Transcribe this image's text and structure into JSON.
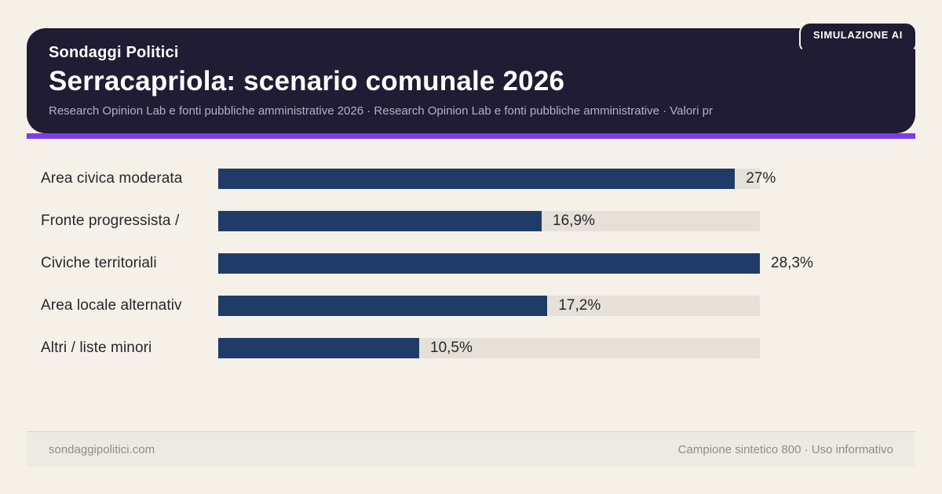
{
  "badge": {
    "label": "SIMULAZIONE AI"
  },
  "header": {
    "kicker": "Sondaggi Politici",
    "title": "Serracapriola: scenario comunale 2026",
    "subtitle": "Research Opinion Lab e fonti pubbliche amministrative 2026 · Research Opinion Lab e fonti pubbliche amministrative · Valori pr"
  },
  "chart_data": {
    "type": "bar",
    "orientation": "horizontal",
    "title": "Serracapriola: scenario comunale 2026",
    "categories": [
      "Area civica moderata",
      "Fronte progressista /",
      "Civiche territoriali",
      "Area locale alternativ",
      "Altri / liste minori"
    ],
    "values": [
      27,
      16.9,
      28.3,
      17.2,
      10.5
    ],
    "value_labels": [
      "27%",
      "16,9%",
      "28,3%",
      "17,2%",
      "10,5%"
    ],
    "unit": "%",
    "max_value": 28.3,
    "legend": false,
    "grid": false
  },
  "footer": {
    "left": "sondaggipolitici.com",
    "right": "Campione sintetico 800 · Uso informativo"
  },
  "colors": {
    "page-bg": "#f5f1e8",
    "header-bg": "#201c33",
    "accent": "#7c3aed",
    "bar": "#1f3c69",
    "track": "#e5e1d8"
  }
}
